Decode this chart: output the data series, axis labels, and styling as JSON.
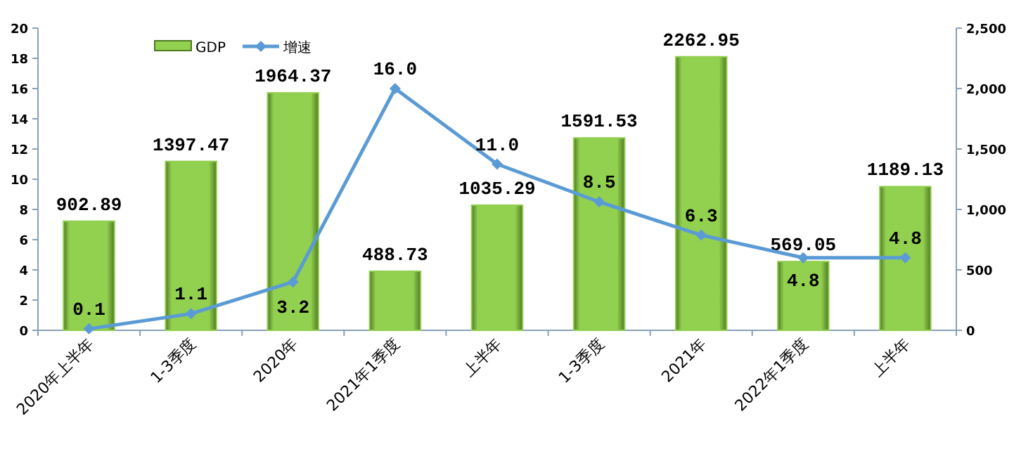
{
  "chart_data": {
    "type": "bar",
    "categories": [
      "2020年上半年",
      "1-3季度",
      "2020年",
      "2021年1季度",
      "上半年",
      "1-3季度",
      "2021年",
      "2022年1季度",
      "上半年"
    ],
    "series": [
      {
        "name": "GDP",
        "axis": "y2",
        "color": "#92d050",
        "values": [
          902.89,
          1397.47,
          1964.37,
          488.73,
          1035.29,
          1591.53,
          2262.95,
          569.05,
          1189.13
        ],
        "value_labels": [
          "902.89",
          "1397.47",
          "1964.37",
          "488.73",
          "1035.29",
          "1591.53",
          "2262.95",
          "569.05",
          "1189.13"
        ]
      },
      {
        "name": "增速",
        "type": "line",
        "color": "#5b9bd5",
        "values": [
          0.1,
          1.1,
          3.2,
          16.0,
          11.0,
          8.5,
          6.3,
          4.8,
          4.8
        ],
        "value_labels": [
          "0.1",
          "1.1",
          "3.2",
          "16.0",
          "11.0",
          "8.5",
          "6.3",
          "4.8",
          "4.8"
        ]
      }
    ],
    "ylim": [
      0,
      20
    ],
    "yticks": [
      0,
      2,
      4,
      6,
      8,
      10,
      12,
      14,
      16,
      18,
      20
    ],
    "y2lim": [
      0,
      2500
    ],
    "y2ticks": [
      0,
      500,
      {
        "value": 1000,
        "label": "1,000"
      },
      {
        "value": 1500,
        "label": "1,500"
      },
      {
        "value": 2000,
        "label": "2,000"
      },
      {
        "value": 2500,
        "label": "2,500"
      }
    ],
    "legend": "top",
    "marker": "diamond",
    "line_style": "solid",
    "grid": false
  }
}
